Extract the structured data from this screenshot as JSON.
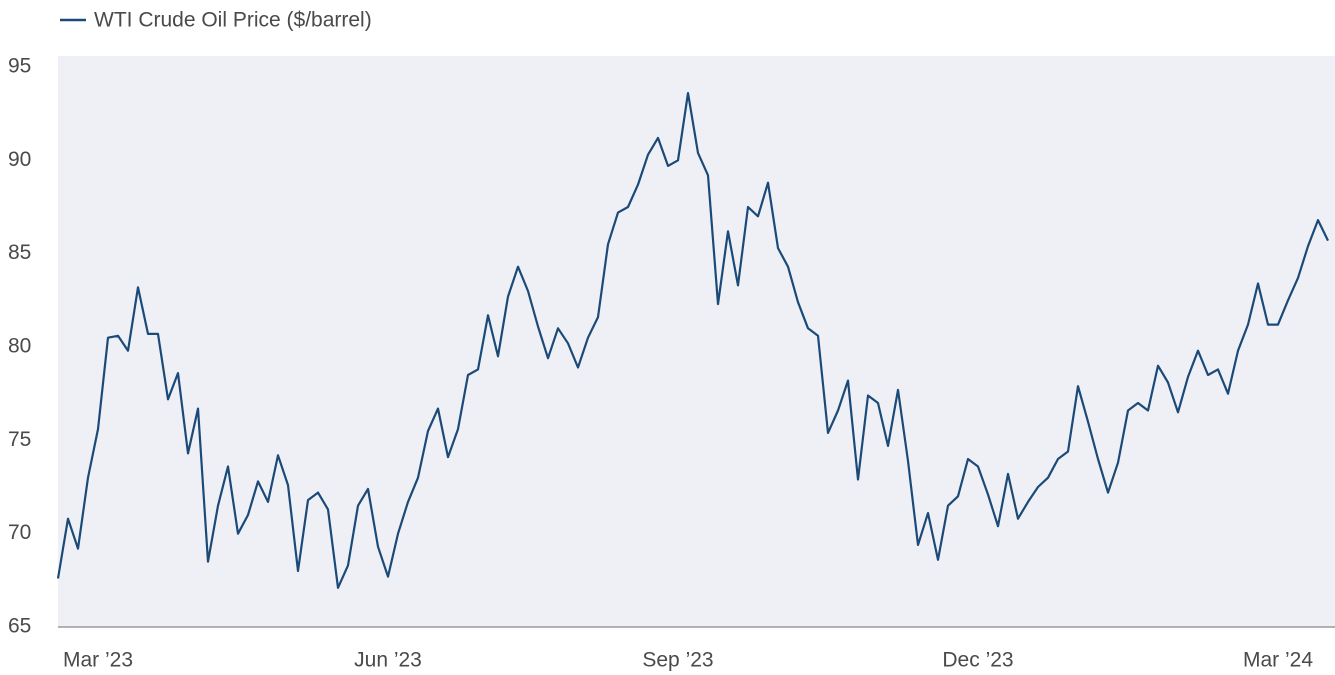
{
  "chart_data": {
    "type": "line",
    "categories": [
      null,
      null,
      null,
      null,
      "Mar ’23",
      null,
      null,
      null,
      null,
      null,
      null,
      null,
      null,
      null,
      null,
      null,
      null,
      null,
      null,
      null,
      null,
      null,
      null,
      null,
      null,
      null,
      null,
      null,
      null,
      null,
      null,
      null,
      null,
      "Jun ’23",
      null,
      null,
      null,
      null,
      null,
      null,
      null,
      null,
      null,
      null,
      null,
      null,
      null,
      null,
      null,
      null,
      null,
      null,
      null,
      null,
      null,
      null,
      null,
      null,
      null,
      null,
      null,
      null,
      "Sep ’23",
      null,
      null,
      null,
      null,
      null,
      null,
      null,
      null,
      null,
      null,
      null,
      null,
      null,
      null,
      null,
      null,
      null,
      null,
      null,
      null,
      null,
      null,
      null,
      null,
      null,
      null,
      null,
      null,
      null,
      "Dec ’23",
      null,
      null,
      null,
      null,
      null,
      null,
      null,
      null,
      null,
      null,
      null,
      null,
      null,
      null,
      null,
      null,
      null,
      null,
      null,
      null,
      null,
      null,
      null,
      null,
      null,
      null,
      null,
      null,
      null,
      "Mar ’24",
      null,
      null,
      null,
      null,
      null
    ],
    "series": [
      {
        "name": "WTI Crude Oil Price ($/barrel)",
        "color": "#1b4a78",
        "values": [
          67.6,
          70.8,
          69.2,
          73,
          75.6,
          80.5,
          80.6,
          79.8,
          83.2,
          80.7,
          80.7,
          77.2,
          78.6,
          74.3,
          76.7,
          68.5,
          71.5,
          73.6,
          70,
          71,
          72.8,
          71.7,
          74.2,
          72.6,
          68,
          71.8,
          72.2,
          71.3,
          67.1,
          68.3,
          71.5,
          72.4,
          69.3,
          67.7,
          70,
          71.7,
          73,
          75.5,
          76.7,
          74.1,
          75.6,
          78.5,
          78.8,
          81.7,
          79.5,
          82.7,
          84.3,
          83,
          81.1,
          79.4,
          81,
          80.2,
          78.9,
          80.5,
          81.6,
          85.5,
          87.2,
          87.5,
          88.7,
          90.3,
          91.2,
          89.7,
          90,
          93.6,
          90.4,
          89.2,
          82.3,
          86.2,
          83.3,
          87.5,
          87,
          88.8,
          85.3,
          84.3,
          82.4,
          81,
          80.6,
          75.4,
          76.6,
          78.2,
          72.9,
          77.4,
          77,
          74.7,
          77.7,
          73.9,
          69.4,
          71.1,
          68.6,
          71.5,
          72,
          74,
          73.6,
          72.1,
          70.4,
          73.2,
          70.8,
          71.7,
          72.5,
          73,
          74,
          74.4,
          77.9,
          76,
          74,
          72.2,
          73.8,
          76.6,
          77,
          76.6,
          79,
          78.1,
          76.5,
          78.4,
          79.8,
          78.5,
          78.8,
          77.5,
          79.8,
          81.2,
          83.4,
          81.2,
          81.2,
          82.5,
          83.7,
          85.4,
          86.8,
          85.7
        ]
      }
    ],
    "ylim": [
      65,
      95
    ],
    "yticks": [
      65,
      70,
      75,
      80,
      85,
      90,
      95
    ],
    "grid": false,
    "legend": "top-left"
  }
}
